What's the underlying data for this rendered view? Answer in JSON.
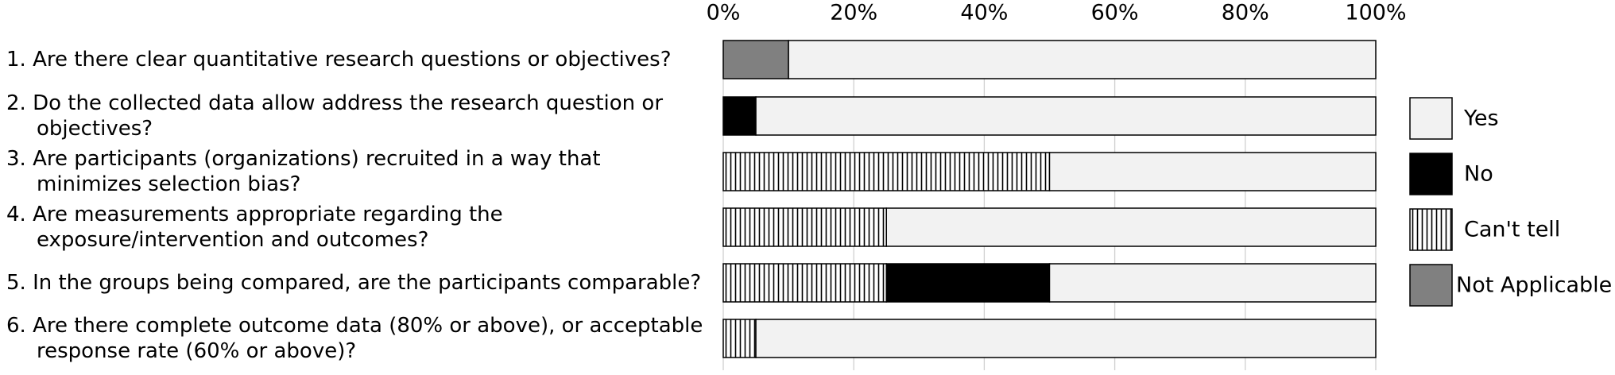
{
  "chart_data": {
    "type": "stacked-barh",
    "categories": [
      "1.  Are there clear quantitative research questions or objectives?",
      "2. Do the collected data allow address the research question or objectives?",
      "3. Are participants (organizations) recruited in a way that minimizes selection bias?",
      "4. Are measurements appropriate regarding the exposure/intervention and outcomes?",
      "5. In the groups being compared, are the participants comparable?",
      "6. Are there complete outcome data (80% or above), or acceptable response rate (60% or above)?"
    ],
    "series": [
      {
        "name": "Yes",
        "color": "#f2f2f2",
        "values": [
          90,
          95,
          50,
          75,
          50,
          95
        ]
      },
      {
        "name": "No",
        "color": "#000000",
        "values": [
          0,
          5,
          0,
          0,
          25,
          0
        ]
      },
      {
        "name": "Can't tell",
        "color": "#ffffff",
        "hatch": "vertical",
        "values": [
          0,
          0,
          50,
          25,
          25,
          5
        ]
      },
      {
        "name": "Not Applicable",
        "color": "#808080",
        "values": [
          10,
          0,
          0,
          0,
          0,
          0
        ]
      }
    ],
    "xlim": [
      0,
      100
    ],
    "xticks": [
      {
        "value": 0,
        "label": "0%"
      },
      {
        "value": 20,
        "label": "20%"
      },
      {
        "value": 40,
        "label": "40%"
      },
      {
        "value": 60,
        "label": "60%"
      },
      {
        "value": 80,
        "label": "80%"
      },
      {
        "value": 100,
        "label": "100%"
      }
    ],
    "grid": true,
    "legend": "right"
  }
}
